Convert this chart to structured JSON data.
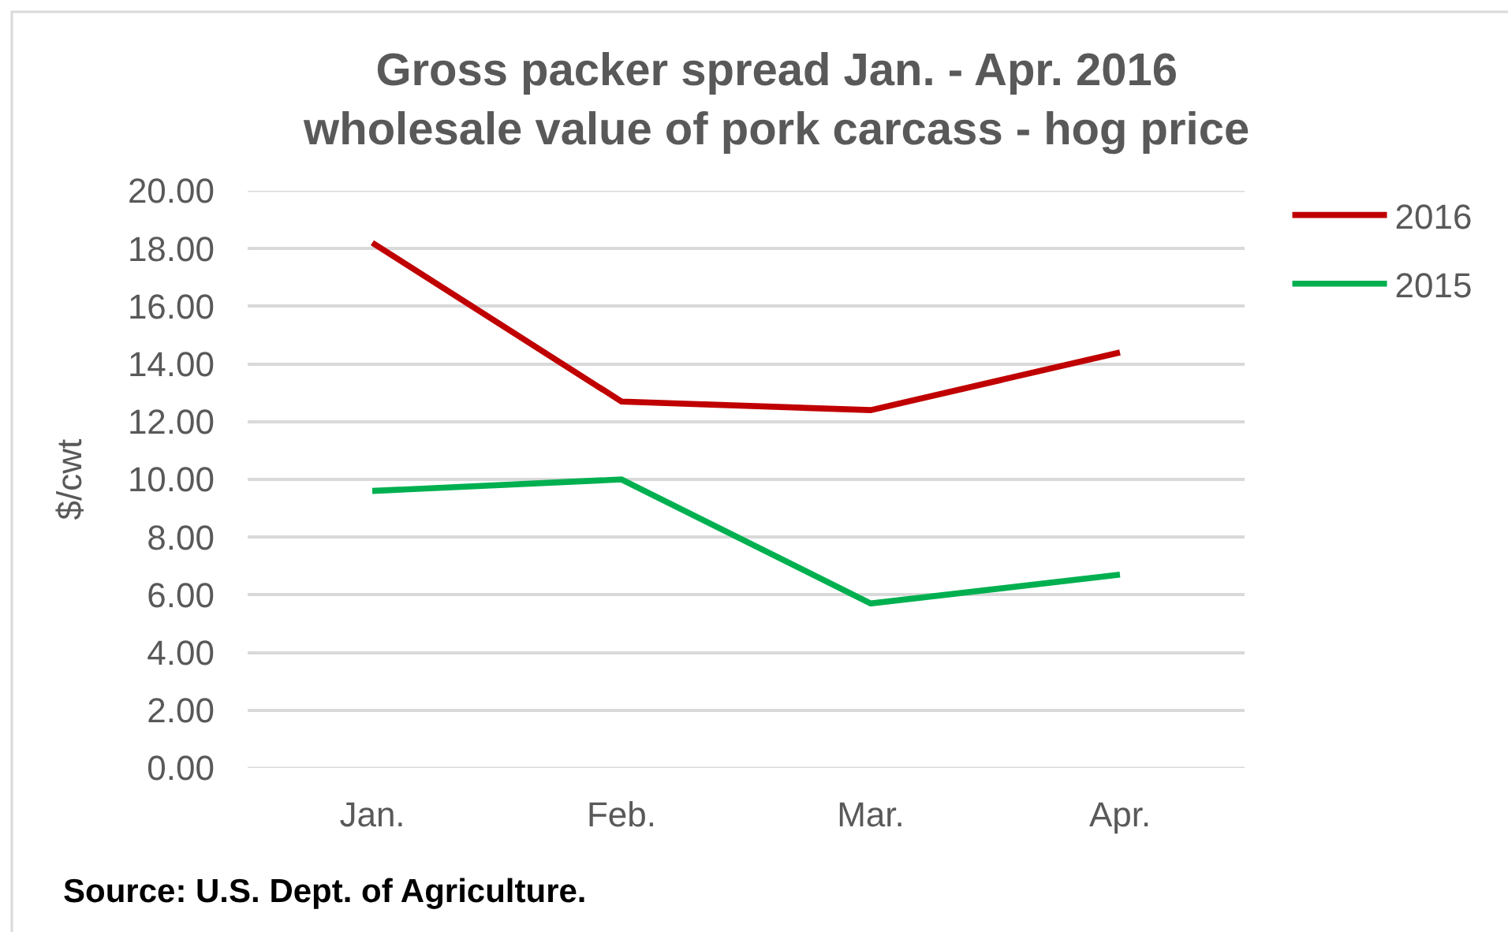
{
  "chart_data": {
    "type": "line",
    "title": "Gross packer spread Jan. - Apr. 2016\nwholesale value of pork carcass - hog price",
    "ylabel": "$/cwt",
    "categories": [
      "Jan.",
      "Feb.",
      "Mar.",
      "Apr."
    ],
    "series": [
      {
        "name": "2016",
        "color": "#c00000",
        "values": [
          18.2,
          12.7,
          12.4,
          14.4
        ]
      },
      {
        "name": "2015",
        "color": "#00b050",
        "values": [
          9.6,
          10.0,
          5.7,
          6.7
        ]
      }
    ],
    "ylim": [
      0,
      20
    ],
    "yticks": [
      {
        "value": 0,
        "label": "0.00"
      },
      {
        "value": 2,
        "label": "2.00"
      },
      {
        "value": 4,
        "label": "4.00"
      },
      {
        "value": 6,
        "label": "6.00"
      },
      {
        "value": 8,
        "label": "8.00"
      },
      {
        "value": 10,
        "label": "10.00"
      },
      {
        "value": 12,
        "label": "12.00"
      },
      {
        "value": 14,
        "label": "14.00"
      },
      {
        "value": 16,
        "label": "16.00"
      },
      {
        "value": 18,
        "label": "18.00"
      },
      {
        "value": 20,
        "label": "20.00"
      }
    ],
    "grid": "y",
    "legend": "top right",
    "line_style": "solid",
    "annotations": [
      "Source: U.S. Dept. of Agriculture."
    ]
  }
}
